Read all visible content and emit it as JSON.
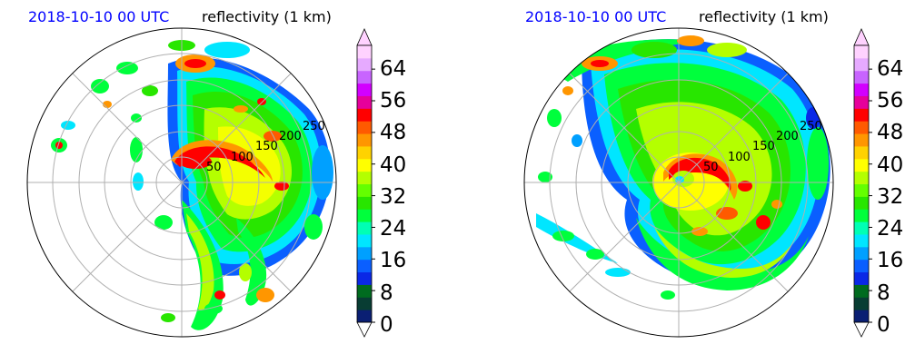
{
  "chart_data": [
    {
      "type": "heatmap",
      "title_left": "2018-10-10 00 UTC",
      "title_right": "reflectivity (1 km)",
      "projection": "polar",
      "radial_ticks": [
        "50",
        "100",
        "150",
        "200",
        "250"
      ],
      "colorbar_ticks": [
        "0",
        "8",
        "16",
        "24",
        "32",
        "40",
        "48",
        "56",
        "64"
      ],
      "colorbar_range": [
        0,
        70
      ],
      "colorbar_extend": "both"
    },
    {
      "type": "heatmap",
      "title_left": "2018-10-10 00 UTC",
      "title_right": "reflectivity (1 km)",
      "projection": "polar",
      "radial_ticks": [
        "50",
        "100",
        "150",
        "200",
        "250"
      ],
      "colorbar_ticks": [
        "0",
        "8",
        "16",
        "24",
        "32",
        "40",
        "48",
        "56",
        "64"
      ],
      "colorbar_range": [
        0,
        70
      ],
      "colorbar_extend": "both"
    }
  ],
  "colors": {
    "title_date": "#0000ff",
    "grid": "#b0b0b0",
    "colormap": [
      "#0a1f73",
      "#083d33",
      "#006b1f",
      "#0a28e6",
      "#0a5fff",
      "#00a0ff",
      "#00e6ff",
      "#00ffb4",
      "#00ff3c",
      "#28e600",
      "#64ff00",
      "#b4ff00",
      "#ffff00",
      "#ffd200",
      "#ff9600",
      "#ff5a00",
      "#ff0000",
      "#e6009b",
      "#d200ff",
      "#c864ff",
      "#e6aaff",
      "#ffd2ff"
    ]
  }
}
